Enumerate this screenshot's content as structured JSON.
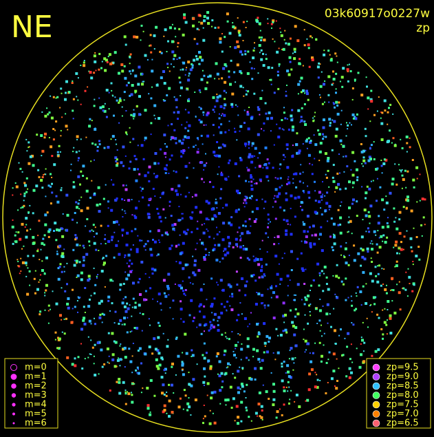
{
  "corner_label": "NE",
  "image_id": "03k60917o0227w",
  "mode_label": "zp",
  "magnitude_legend": [
    {
      "label": "m=0"
    },
    {
      "label": "m=1"
    },
    {
      "label": "m=2"
    },
    {
      "label": "m=3"
    },
    {
      "label": "m=4"
    },
    {
      "label": "m=5"
    },
    {
      "label": "m=6"
    }
  ],
  "zp_legend": [
    {
      "label": "zp=9.5",
      "color": "#ff40ff"
    },
    {
      "label": "zp=9.0",
      "color": "#b040ff"
    },
    {
      "label": "zp=8.5",
      "color": "#30c0ff"
    },
    {
      "label": "zp=8.0",
      "color": "#40ff60"
    },
    {
      "label": "zp=7.5",
      "color": "#ffd000"
    },
    {
      "label": "zp=7.0",
      "color": "#ff8000"
    },
    {
      "label": "zp=6.5",
      "color": "#ff6070"
    }
  ]
}
